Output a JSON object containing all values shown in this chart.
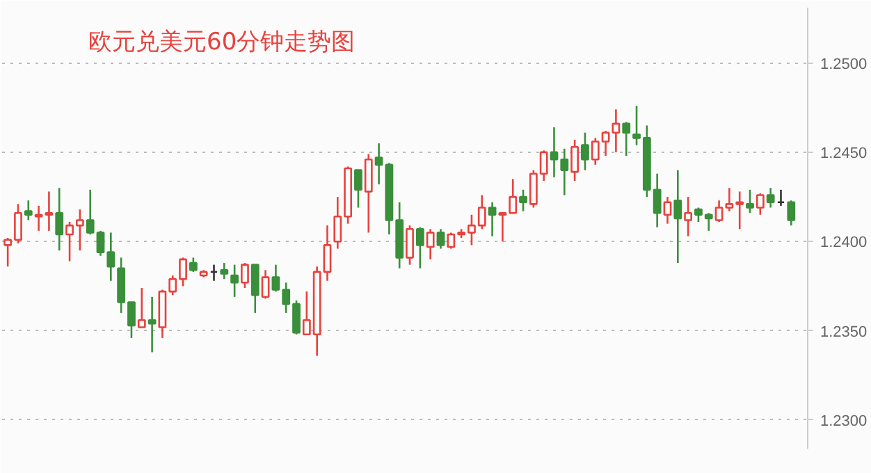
{
  "chart_data": {
    "type": "candlestick",
    "title": "欧元兑美元60分钟走势图",
    "categories": [
      null,
      null,
      null,
      null,
      null,
      null,
      null,
      null,
      null,
      null,
      null,
      null,
      null,
      null,
      null,
      null,
      null,
      null,
      null,
      null,
      null,
      null,
      null,
      null,
      null,
      null,
      null,
      null,
      null,
      null,
      null,
      null,
      null,
      null,
      null,
      null,
      null,
      null,
      null,
      null,
      null,
      null,
      null,
      null,
      null,
      null,
      null,
      null,
      null,
      null,
      null,
      null,
      null,
      null,
      null,
      null,
      null,
      null,
      null,
      null,
      null,
      null,
      null,
      null,
      null,
      null,
      null,
      null,
      null,
      null,
      null,
      null,
      null,
      null,
      null,
      null,
      null
    ],
    "ohlc": [
      [
        1.2398,
        1.2402,
        1.2386,
        1.2401
      ],
      [
        1.2401,
        1.2421,
        1.2399,
        1.2416
      ],
      [
        1.2417,
        1.2423,
        1.2412,
        1.2415
      ],
      [
        1.2414,
        1.242,
        1.2406,
        1.2415
      ],
      [
        1.2415,
        1.2428,
        1.2406,
        1.2416
      ],
      [
        1.2416,
        1.243,
        1.2395,
        1.2404
      ],
      [
        1.2404,
        1.2411,
        1.2389,
        1.2409
      ],
      [
        1.2409,
        1.2418,
        1.2395,
        1.2412
      ],
      [
        1.2412,
        1.2429,
        1.2404,
        1.2405
      ],
      [
        1.2405,
        1.2406,
        1.2392,
        1.2394
      ],
      [
        1.2394,
        1.2405,
        1.2378,
        1.2386
      ],
      [
        1.2385,
        1.2391,
        1.236,
        1.2366
      ],
      [
        1.2366,
        1.2366,
        1.2346,
        1.2353
      ],
      [
        1.2352,
        1.2374,
        1.2352,
        1.2356
      ],
      [
        1.2356,
        1.2369,
        1.2338,
        1.2354
      ],
      [
        1.2352,
        1.2373,
        1.2346,
        1.2372
      ],
      [
        1.2372,
        1.2381,
        1.237,
        1.2379
      ],
      [
        1.2379,
        1.2391,
        1.2375,
        1.239
      ],
      [
        1.2388,
        1.2391,
        1.2383,
        1.2384
      ],
      [
        1.2381,
        1.2384,
        1.238,
        1.2383
      ],
      [
        1.2383,
        1.2387,
        1.2378,
        1.2383
      ],
      [
        1.2384,
        1.2388,
        1.2379,
        1.2382
      ],
      [
        1.2381,
        1.2387,
        1.2369,
        1.2377
      ],
      [
        1.2377,
        1.2388,
        1.2374,
        1.2387
      ],
      [
        1.2387,
        1.2387,
        1.236,
        1.237
      ],
      [
        1.2369,
        1.2384,
        1.2368,
        1.238
      ],
      [
        1.238,
        1.2387,
        1.2372,
        1.2373
      ],
      [
        1.2373,
        1.2377,
        1.236,
        1.2365
      ],
      [
        1.2365,
        1.2367,
        1.2348,
        1.2349
      ],
      [
        1.2348,
        1.2372,
        1.2348,
        1.2356
      ],
      [
        1.2348,
        1.2386,
        1.2336,
        1.2383
      ],
      [
        1.2383,
        1.2409,
        1.2378,
        1.2398
      ],
      [
        1.24,
        1.2425,
        1.2396,
        1.2414
      ],
      [
        1.2414,
        1.2442,
        1.241,
        1.2441
      ],
      [
        1.244,
        1.244,
        1.2419,
        1.2429
      ],
      [
        1.2428,
        1.2449,
        1.2405,
        1.2446
      ],
      [
        1.2447,
        1.2455,
        1.2432,
        1.2443
      ],
      [
        1.2443,
        1.2444,
        1.2404,
        1.2412
      ],
      [
        1.2412,
        1.2422,
        1.2385,
        1.2391
      ],
      [
        1.2391,
        1.2409,
        1.2387,
        1.2407
      ],
      [
        1.2407,
        1.2408,
        1.2385,
        1.2398
      ],
      [
        1.2397,
        1.2407,
        1.239,
        1.2405
      ],
      [
        1.2405,
        1.2407,
        1.2396,
        1.2398
      ],
      [
        1.2397,
        1.2405,
        1.2396,
        1.2404
      ],
      [
        1.2404,
        1.2407,
        1.2402,
        1.2405
      ],
      [
        1.2405,
        1.2415,
        1.2398,
        1.2409
      ],
      [
        1.2409,
        1.2426,
        1.2407,
        1.2419
      ],
      [
        1.2419,
        1.2422,
        1.2403,
        1.2415
      ],
      [
        1.2415,
        1.2416,
        1.24,
        1.2416
      ],
      [
        1.2416,
        1.2435,
        1.2416,
        1.2425
      ],
      [
        1.2425,
        1.2429,
        1.2417,
        1.2422
      ],
      [
        1.2421,
        1.244,
        1.2419,
        1.2438
      ],
      [
        1.2438,
        1.2451,
        1.2434,
        1.245
      ],
      [
        1.245,
        1.2464,
        1.2436,
        1.2446
      ],
      [
        1.2446,
        1.2452,
        1.2426,
        1.244
      ],
      [
        1.2439,
        1.2457,
        1.2434,
        1.2453
      ],
      [
        1.2454,
        1.2461,
        1.244,
        1.2446
      ],
      [
        1.2446,
        1.2458,
        1.2443,
        1.2456
      ],
      [
        1.2456,
        1.2462,
        1.2448,
        1.2461
      ],
      [
        1.2461,
        1.2474,
        1.245,
        1.2466
      ],
      [
        1.2466,
        1.2467,
        1.2448,
        1.2461
      ],
      [
        1.246,
        1.2476,
        1.2454,
        1.2458
      ],
      [
        1.2458,
        1.2465,
        1.2425,
        1.2429
      ],
      [
        1.2429,
        1.2438,
        1.2408,
        1.2416
      ],
      [
        1.2415,
        1.2425,
        1.241,
        1.2422
      ],
      [
        1.2423,
        1.244,
        1.2388,
        1.2413
      ],
      [
        1.2412,
        1.2425,
        1.2403,
        1.2416
      ],
      [
        1.2418,
        1.2419,
        1.2411,
        1.2415
      ],
      [
        1.2415,
        1.2416,
        1.2406,
        1.2413
      ],
      [
        1.2412,
        1.2423,
        1.2411,
        1.2419
      ],
      [
        1.2419,
        1.243,
        1.2417,
        1.2421
      ],
      [
        1.2421,
        1.2428,
        1.2407,
        1.2422
      ],
      [
        1.2421,
        1.2429,
        1.2416,
        1.2419
      ],
      [
        1.2419,
        1.2427,
        1.2415,
        1.2426
      ],
      [
        1.2426,
        1.243,
        1.2419,
        1.2422
      ],
      [
        1.2422,
        1.2429,
        1.242,
        1.2422
      ],
      [
        1.2422,
        1.2423,
        1.2409,
        1.2412
      ]
    ],
    "colors": [
      "#e8413d",
      "#e8413d",
      "#3a8f3a",
      "#e8413d",
      "#e8413d",
      "#3a8f3a",
      "#e8413d",
      "#e8413d",
      "#3a8f3a",
      "#3a8f3a",
      "#3a8f3a",
      "#3a8f3a",
      "#3a8f3a",
      "#e8413d",
      "#3a8f3a",
      "#e8413d",
      "#e8413d",
      "#e8413d",
      "#3a8f3a",
      "#e8413d",
      "#333333",
      "#3a8f3a",
      "#3a8f3a",
      "#e8413d",
      "#3a8f3a",
      "#e8413d",
      "#3a8f3a",
      "#3a8f3a",
      "#3a8f3a",
      "#e8413d",
      "#e8413d",
      "#e8413d",
      "#e8413d",
      "#e8413d",
      "#3a8f3a",
      "#e8413d",
      "#3a8f3a",
      "#3a8f3a",
      "#3a8f3a",
      "#e8413d",
      "#3a8f3a",
      "#e8413d",
      "#3a8f3a",
      "#e8413d",
      "#e8413d",
      "#e8413d",
      "#e8413d",
      "#3a8f3a",
      "#e8413d",
      "#e8413d",
      "#3a8f3a",
      "#e8413d",
      "#e8413d",
      "#3a8f3a",
      "#3a8f3a",
      "#e8413d",
      "#3a8f3a",
      "#e8413d",
      "#e8413d",
      "#e8413d",
      "#3a8f3a",
      "#3a8f3a",
      "#3a8f3a",
      "#3a8f3a",
      "#e8413d",
      "#3a8f3a",
      "#e8413d",
      "#3a8f3a",
      "#3a8f3a",
      "#e8413d",
      "#e8413d",
      "#e8413d",
      "#3a8f3a",
      "#e8413d",
      "#3a8f3a",
      "#333333",
      "#3a8f3a"
    ],
    "ylim": [
      1.2284,
      1.2531
    ],
    "yticks": [
      {
        "value": 1.23,
        "label": "1.2300"
      },
      {
        "value": 1.235,
        "label": "1.2350"
      },
      {
        "value": 1.24,
        "label": "1.2400"
      },
      {
        "value": 1.245,
        "label": "1.2450"
      },
      {
        "value": 1.25,
        "label": "1.2500"
      }
    ],
    "grid": "y",
    "tick_labels": "y"
  }
}
